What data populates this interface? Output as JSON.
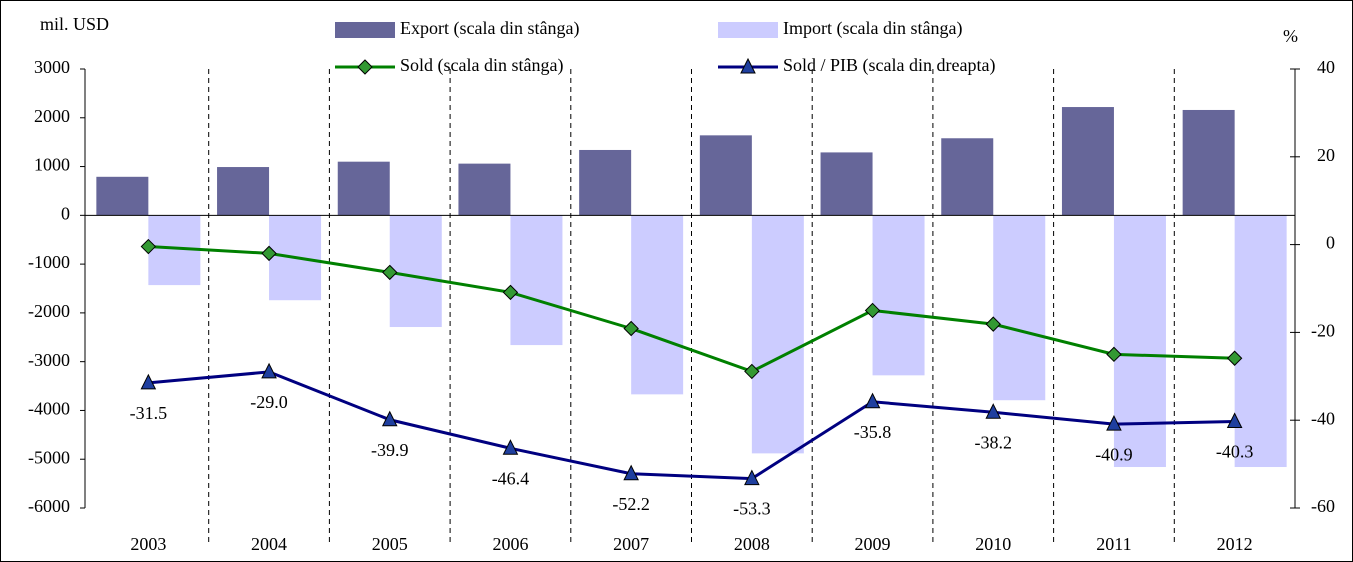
{
  "chart_data": {
    "type": "bar",
    "y_axis_label": "mil. USD",
    "y2_axis_label": "%",
    "categories": [
      "2003",
      "2004",
      "2005",
      "2006",
      "2007",
      "2008",
      "2009",
      "2010",
      "2011",
      "2012"
    ],
    "series": [
      {
        "name": "Export (scala din stânga)",
        "type": "bar",
        "color": "#666699",
        "values": [
          790,
          990,
          1100,
          1060,
          1340,
          1640,
          1290,
          1580,
          2220,
          2160
        ]
      },
      {
        "name": "Import (scala din stânga)",
        "type": "bar",
        "color": "#ccccff",
        "values": [
          -1430,
          -1740,
          -2290,
          -2660,
          -3670,
          -4880,
          -3280,
          -3790,
          -5160,
          -5160
        ]
      },
      {
        "name": "Sold (scala din stânga)",
        "type": "line",
        "color": "#008000",
        "marker": "diamond",
        "marker_color": "#339933",
        "values": [
          -640,
          -780,
          -1170,
          -1580,
          -2320,
          -3200,
          -1950,
          -2230,
          -2850,
          -2930
        ]
      },
      {
        "name": "Sold / PIB (scala din dreapta)",
        "type": "line",
        "axis": "y2",
        "color": "#000080",
        "marker": "triangle",
        "marker_color": "#1f3f9f",
        "values": [
          -31.5,
          -29.0,
          -39.9,
          -46.4,
          -52.2,
          -53.3,
          -35.8,
          -38.2,
          -40.9,
          -40.3
        ],
        "value_labels": [
          "-31.5",
          "-29.0",
          "-39.9",
          "-46.4",
          "-52.2",
          "-53.3",
          "-35.8",
          "-38.2",
          "-40.9",
          "-40.3"
        ]
      }
    ],
    "ylim": [
      -6000,
      3000
    ],
    "yticks": [
      -6000,
      -5000,
      -4000,
      -3000,
      -2000,
      -1000,
      0,
      1000,
      2000,
      3000
    ],
    "y2lim": [
      -60,
      40
    ],
    "y2ticks": [
      -60,
      -40,
      -20,
      0,
      20,
      40
    ]
  }
}
